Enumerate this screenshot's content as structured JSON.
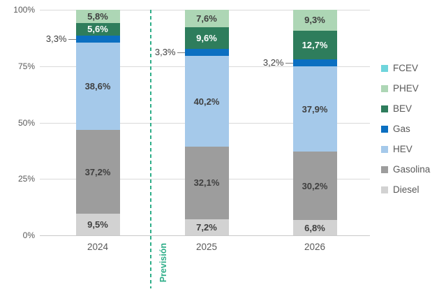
{
  "chart_data": {
    "type": "bar",
    "stacked": true,
    "title": "",
    "categories": [
      "2024",
      "2025",
      "2026"
    ],
    "series": [
      {
        "name": "Diesel",
        "color": "#d2d2d2",
        "label_color": "#3f3f3f",
        "values": [
          9.5,
          7.2,
          6.8
        ],
        "labels": [
          "9,5%",
          "7,2%",
          "6,8%"
        ]
      },
      {
        "name": "Gasolina",
        "color": "#9d9d9d",
        "label_color": "#3f3f3f",
        "values": [
          37.2,
          32.1,
          30.2
        ],
        "labels": [
          "37,2%",
          "32,1%",
          "30,2%"
        ]
      },
      {
        "name": "HEV",
        "color": "#a5c9ea",
        "label_color": "#3f3f3f",
        "values": [
          38.6,
          40.2,
          37.9
        ],
        "labels": [
          "38,6%",
          "40,2%",
          "37,9%"
        ]
      },
      {
        "name": "Gas",
        "color": "#0b6fc1",
        "label_color": "#3f3f3f",
        "values": [
          3.3,
          3.3,
          3.2
        ],
        "labels": [
          "3,3%",
          "3,3%",
          "3,2%"
        ],
        "label_outside": true
      },
      {
        "name": "BEV",
        "color": "#2e7d5c",
        "label_color": "#ffffff",
        "values": [
          5.6,
          9.6,
          12.7
        ],
        "labels": [
          "5,6%",
          "9,6%",
          "12,7%"
        ]
      },
      {
        "name": "PHEV",
        "color": "#add6b5",
        "label_color": "#3f3f3f",
        "values": [
          5.8,
          7.6,
          9.3
        ],
        "labels": [
          "5,8%",
          "7,6%",
          "9,3%"
        ]
      },
      {
        "name": "FCEV",
        "color": "#6fd5dc",
        "label_color": "#3f3f3f",
        "values": [
          0,
          0,
          0
        ],
        "labels": [
          "",
          "",
          ""
        ]
      }
    ],
    "y_ticks": [
      "0%",
      "25%",
      "50%",
      "75%",
      "100%"
    ],
    "ylim": [
      0,
      100
    ],
    "grid": true,
    "legend_position": "right",
    "annotation": {
      "text": "Previsión",
      "color": "#2fae89"
    }
  },
  "legend": {
    "items": [
      {
        "label": "FCEV",
        "color": "#6fd5dc"
      },
      {
        "label": "PHEV",
        "color": "#add6b5"
      },
      {
        "label": "BEV",
        "color": "#2e7d5c"
      },
      {
        "label": "Gas",
        "color": "#0b6fc1"
      },
      {
        "label": "HEV",
        "color": "#a5c9ea"
      },
      {
        "label": "Gasolina",
        "color": "#9d9d9d"
      },
      {
        "label": "Diesel",
        "color": "#d2d2d2"
      }
    ]
  }
}
